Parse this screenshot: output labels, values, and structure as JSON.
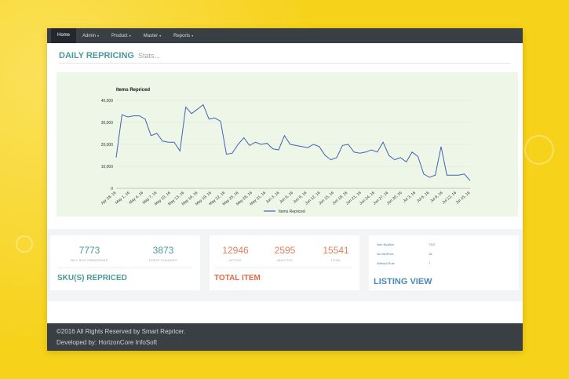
{
  "nav": {
    "items": [
      {
        "label": "Home",
        "caret": ""
      },
      {
        "label": "Admin",
        "caret": "▾"
      },
      {
        "label": "Product",
        "caret": "▾"
      },
      {
        "label": "Master",
        "caret": "▾"
      },
      {
        "label": "Reports",
        "caret": "▾"
      }
    ]
  },
  "page": {
    "title": "DAILY REPRICING",
    "subtitle": "Stats..."
  },
  "chart_data": {
    "type": "line",
    "title": "Items Repriced",
    "ylim": [
      0,
      40000
    ],
    "yticks": [
      "0",
      "10,000",
      "20,000",
      "30,000",
      "40,000"
    ],
    "xticks": [
      "Apr 28, 16",
      "May 1, 16",
      "May 4, 16",
      "May 7, 16",
      "May 10, 16",
      "May 13, 16",
      "May 16, 16",
      "May 19, 16",
      "May 22, 16",
      "May 25, 16",
      "May 28, 16",
      "May 31, 16",
      "Jun 3, 16",
      "Jun 6, 16",
      "Jun 9, 16",
      "Jun 12, 16",
      "Jun 15, 16",
      "Jun 18, 16",
      "Jun 21, 16",
      "Jun 24, 16",
      "Jun 27, 16",
      "Jun 30, 16",
      "Jul 3, 16",
      "Jul 6, 16",
      "Jul 9, 16",
      "Jul 12, 16",
      "Jul 15, 16"
    ],
    "series": [
      {
        "name": "Items Repriced",
        "color": "#3f63b5",
        "values": [
          14000,
          33500,
          32500,
          33000,
          33000,
          31500,
          24000,
          25000,
          21500,
          21000,
          21000,
          17000,
          37000,
          34000,
          36000,
          38000,
          31500,
          32000,
          30500,
          15500,
          16000,
          20000,
          23000,
          19500,
          21000,
          20000,
          20500,
          18000,
          17500,
          24000,
          20000,
          19500,
          19000,
          18500,
          20000,
          19000,
          15000,
          13000,
          14000,
          19500,
          20000,
          16500,
          16000,
          16500,
          17500,
          16500,
          21000,
          15000,
          13000,
          14000,
          12000,
          16500,
          14500,
          6500,
          5000,
          6000,
          19000,
          6000,
          6000,
          6000,
          6500,
          3500
        ]
      }
    ],
    "legend": "bottom",
    "grid": true
  },
  "cards": {
    "sku": {
      "stats": [
        {
          "value": "7773",
          "label": "BUY BOX OWNERSHIP"
        },
        {
          "value": "3873",
          "label": "PRICE CHANGES"
        }
      ],
      "title": "SKU(S) REPRICED",
      "value_color": "#4a9a9a",
      "title_color": "#4a9a9a"
    },
    "total": {
      "stats": [
        {
          "value": "12946",
          "label": "ACTIVE"
        },
        {
          "value": "2595",
          "label": "INACTIVE"
        },
        {
          "value": "15541",
          "label": "TOTAL"
        }
      ],
      "title": "TOTAL ITEM",
      "value_color": "#e0805e",
      "title_color": "#e06a4a"
    },
    "listing": {
      "rows": [
        {
          "label": "Non BuyBox",
          "value": "7327"
        },
        {
          "label": "No MinPrice",
          "value": "18"
        },
        {
          "label": "Without Rule",
          "value": "7"
        }
      ],
      "title": "LISTING VIEW",
      "title_color": "#4a8ab5"
    }
  },
  "footer": {
    "copyright": "©2016 All Rights Reserved by Smart Repricer.",
    "developed": "Developed by: HorizonCore InfoSoft"
  }
}
